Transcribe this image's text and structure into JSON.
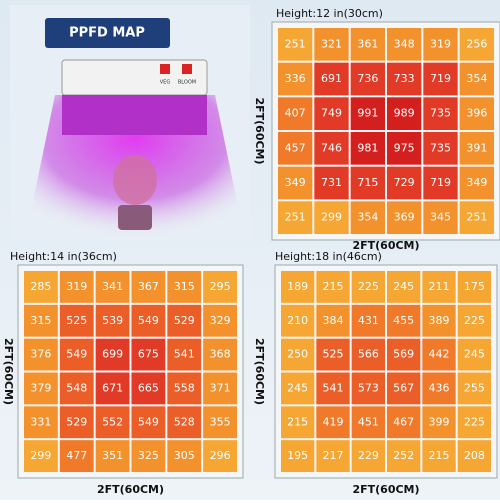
{
  "title": "PPFD MAP",
  "lamp_labels": [
    "VEG",
    "BLOOM"
  ],
  "grids": [
    {
      "height": "Height:12 in(30cm)",
      "side_label": "2FT(60CM)",
      "bottom_label": "2FT(60CM)",
      "rows": [
        [
          251,
          321,
          361,
          348,
          319,
          256
        ],
        [
          336,
          691,
          736,
          733,
          719,
          354
        ],
        [
          407,
          749,
          991,
          989,
          735,
          396
        ],
        [
          457,
          746,
          981,
          975,
          735,
          391
        ],
        [
          349,
          731,
          715,
          729,
          719,
          349
        ],
        [
          251,
          299,
          354,
          369,
          345,
          251
        ]
      ]
    },
    {
      "height": "Height:14 in(36cm)",
      "side_label": "2FT(60CM)",
      "bottom_label": "2FT(60CM)",
      "rows": [
        [
          285,
          319,
          341,
          367,
          315,
          295
        ],
        [
          315,
          525,
          539,
          549,
          529,
          329
        ],
        [
          376,
          549,
          699,
          675,
          541,
          368
        ],
        [
          379,
          548,
          671,
          665,
          558,
          371
        ],
        [
          331,
          529,
          552,
          549,
          528,
          355
        ],
        [
          299,
          477,
          351,
          325,
          305,
          296
        ]
      ]
    },
    {
      "height": "Height:18 in(46cm)",
      "side_label": "2FT(60CM)",
      "bottom_label": "2FT(60CM)",
      "rows": [
        [
          189,
          215,
          225,
          245,
          211,
          175
        ],
        [
          210,
          384,
          431,
          455,
          389,
          225
        ],
        [
          250,
          525,
          566,
          569,
          442,
          245
        ],
        [
          245,
          541,
          573,
          567,
          436,
          255
        ],
        [
          215,
          419,
          451,
          467,
          399,
          225
        ],
        [
          195,
          217,
          229,
          252,
          215,
          208
        ]
      ]
    }
  ]
}
